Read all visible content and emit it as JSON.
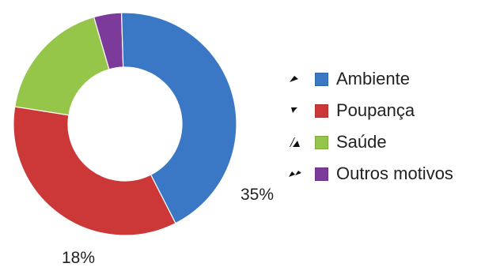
{
  "chart_data": {
    "type": "pie",
    "title": "",
    "donut": true,
    "categories": [
      "Ambiente",
      "Poupança",
      "Saúde",
      "Outros motivos"
    ],
    "values": [
      43,
      35,
      18,
      4
    ],
    "colors": [
      "#3a78c6",
      "#cc3838",
      "#95c64a",
      "#7c3b9a"
    ],
    "legend": {
      "position": "right",
      "items": [
        {
          "label": "Ambiente",
          "glyph": "filled-wedge-icon"
        },
        {
          "label": "Poupança",
          "glyph": "broken-wedge-icon"
        },
        {
          "label": "Saúde",
          "glyph": "chart-slice-icon"
        },
        {
          "label": "Outros motivos",
          "glyph": "split-wedge-icon"
        }
      ]
    },
    "data_labels": [
      {
        "series_index": 1,
        "text": "35%"
      },
      {
        "series_index": 2,
        "text": "18%"
      }
    ]
  }
}
